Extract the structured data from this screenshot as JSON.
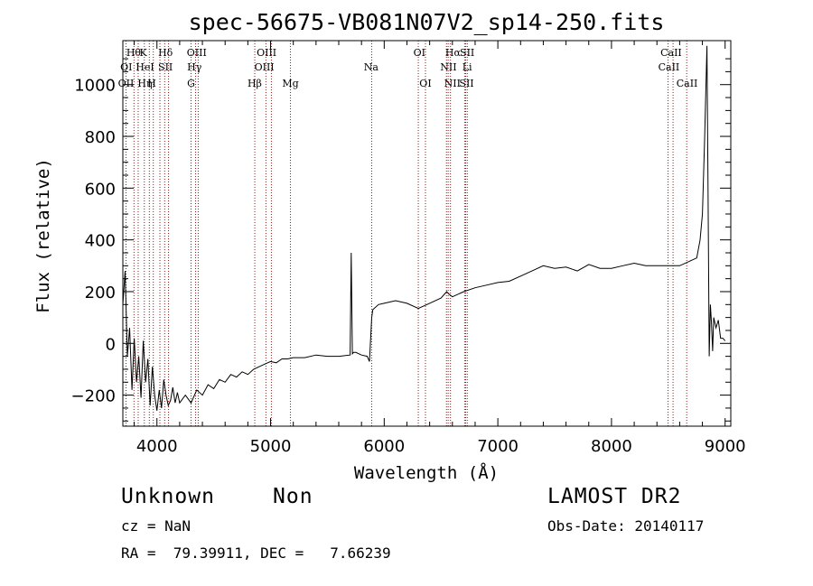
{
  "chart_data": {
    "type": "line",
    "title": "spec-56675-VB081N07V2_sp14-250.fits",
    "xlabel": "Wavelength (Å)",
    "ylabel": "Flux (relative)",
    "xlim": [
      3700,
      9050
    ],
    "ylim": [
      -320,
      1170
    ],
    "xticks": [
      4000,
      5000,
      6000,
      7000,
      8000,
      9000
    ],
    "yticks": [
      -200,
      0,
      200,
      400,
      600,
      800,
      1000
    ],
    "xtick_labels": [
      "4000",
      "5000",
      "6000",
      "7000",
      "8000",
      "9000"
    ],
    "ytick_labels": [
      "−200",
      "0",
      "200",
      "400",
      "600",
      "800",
      "1000"
    ],
    "grid": false,
    "line_color": "#000000",
    "marker_color": "#8b1a1a",
    "spectrum": {
      "x": [
        3700,
        3720,
        3740,
        3760,
        3780,
        3800,
        3820,
        3840,
        3860,
        3880,
        3900,
        3920,
        3940,
        3960,
        3980,
        4000,
        4020,
        4040,
        4060,
        4080,
        4100,
        4120,
        4140,
        4160,
        4180,
        4200,
        4250,
        4300,
        4350,
        4400,
        4450,
        4500,
        4550,
        4600,
        4650,
        4700,
        4750,
        4800,
        4850,
        4900,
        4950,
        5000,
        5050,
        5100,
        5150,
        5200,
        5300,
        5400,
        5500,
        5600,
        5700,
        5710,
        5720,
        5730,
        5750,
        5800,
        5850,
        5870,
        5890,
        5900,
        5950,
        6000,
        6100,
        6200,
        6300,
        6400,
        6500,
        6550,
        6570,
        6600,
        6700,
        6800,
        6900,
        7000,
        7100,
        7200,
        7300,
        7400,
        7500,
        7600,
        7700,
        7800,
        7900,
        8000,
        8100,
        8200,
        8300,
        8400,
        8500,
        8600,
        8700,
        8750,
        8780,
        8800,
        8820,
        8840,
        8850,
        8860,
        8870,
        8880,
        8890,
        8900,
        8920,
        8940,
        8960,
        8980,
        9000
      ],
      "y": [
        150,
        280,
        -50,
        60,
        -180,
        20,
        -150,
        -50,
        -210,
        10,
        -150,
        -60,
        -240,
        -90,
        -200,
        -260,
        -180,
        -250,
        -140,
        -200,
        -240,
        -220,
        -170,
        -230,
        -190,
        -230,
        -200,
        -230,
        -180,
        -200,
        -160,
        -175,
        -140,
        -150,
        -120,
        -130,
        -110,
        -120,
        -100,
        -90,
        -80,
        -70,
        -75,
        -60,
        -60,
        -55,
        -55,
        -45,
        -50,
        -50,
        -45,
        350,
        -40,
        -35,
        -35,
        -45,
        -50,
        -70,
        100,
        130,
        150,
        155,
        165,
        155,
        135,
        155,
        175,
        200,
        190,
        180,
        200,
        215,
        225,
        235,
        240,
        260,
        280,
        300,
        290,
        295,
        280,
        305,
        290,
        290,
        300,
        310,
        300,
        300,
        300,
        300,
        320,
        330,
        400,
        500,
        800,
        1150,
        600,
        -50,
        150,
        80,
        -30,
        100,
        60,
        90,
        20,
        20,
        10
      ]
    },
    "line_labels": {
      "row1": [
        "Hθ",
        "K",
        "Hδ",
        "OIII",
        "OIII",
        "OI",
        "Hα",
        "SII",
        "CaII"
      ],
      "row2": [
        "OI",
        "HeI",
        "SII",
        "Hγ",
        "OIII",
        "Na",
        "NII",
        "Li",
        "CaII"
      ],
      "row3": [
        "OII",
        "Hη",
        "H",
        "G",
        "Hβ",
        "Mg",
        "OI",
        "NII",
        "SII",
        "CaII"
      ]
    },
    "line_wavelengths": [
      3728,
      3798,
      3835,
      3889,
      3933,
      3968,
      4026,
      4068,
      4102,
      4300,
      4340,
      4363,
      4861,
      4959,
      5007,
      5175,
      5890,
      6300,
      6363,
      6548,
      6563,
      6583,
      6708,
      6717,
      6731,
      8498,
      8542,
      8662
    ]
  },
  "footer": {
    "object_class": "Unknown",
    "object_subclass": "Non",
    "cz": "cz = NaN",
    "coords": "RA =  79.39911, DEC =   7.66239",
    "survey": "LAMOST DR2",
    "obs_date": "Obs-Date: 20140117"
  }
}
